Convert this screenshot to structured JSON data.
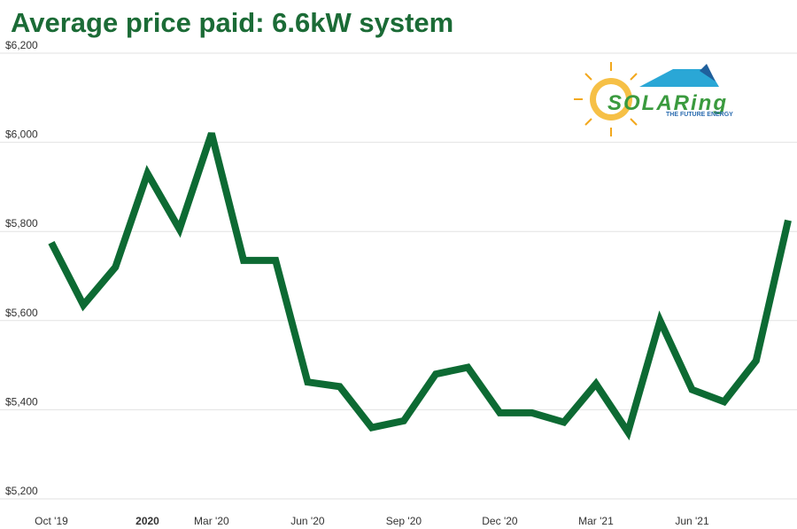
{
  "chart_data": {
    "type": "line",
    "title": "Average price paid: 6.6kW system",
    "logo": {
      "name": "SOLARing",
      "tagline": "THE FUTURE ENERGY"
    },
    "categories": [
      "Oct '19",
      null,
      null,
      "2020",
      null,
      "Mar '20",
      null,
      null,
      "Jun '20",
      null,
      null,
      "Sep '20",
      null,
      null,
      "Dec '20",
      null,
      null,
      "Mar '21",
      null,
      null,
      "Jun '21",
      null,
      null,
      null
    ],
    "series": [
      {
        "name": "Average price paid",
        "color": "#0d6a33",
        "values": [
          5775,
          5635,
          5720,
          5930,
          5805,
          6020,
          5735,
          5735,
          5462,
          5452,
          5360,
          5375,
          5480,
          5495,
          5393,
          5393,
          5372,
          5458,
          5350,
          5600,
          5445,
          5418,
          5510,
          5825
        ]
      }
    ],
    "ylim": [
      5200,
      6200
    ],
    "yticks": [
      {
        "value": 5200,
        "label": "$5,200"
      },
      {
        "value": 5400,
        "label": "$5,400"
      },
      {
        "value": 5600,
        "label": "$5,600"
      },
      {
        "value": 5800,
        "label": "$5,800"
      },
      {
        "value": 6000,
        "label": "$6,000"
      },
      {
        "value": 6200,
        "label": "$6,200"
      }
    ],
    "grid": true
  }
}
